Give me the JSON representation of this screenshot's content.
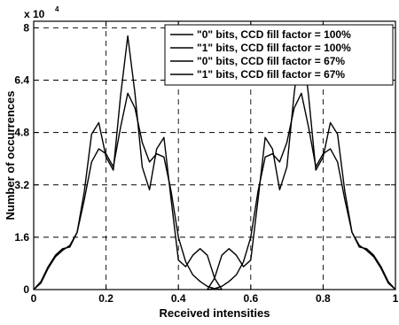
{
  "chart_data": {
    "type": "line",
    "xlabel": "Received intensities",
    "ylabel": "Number of occurrences",
    "xlim": [
      0,
      1
    ],
    "ylim": [
      0,
      82000
    ],
    "y_scale_base": "x 10",
    "y_scale_exponent": "4",
    "x_ticks": [
      0,
      0.2,
      0.4,
      0.6,
      0.8,
      1
    ],
    "x_tick_labels": [
      "0",
      "0.2",
      "0.4",
      "0.6",
      "0.8",
      "1"
    ],
    "y_ticks": [
      0,
      16000,
      32000,
      48000,
      64000,
      80000
    ],
    "y_tick_labels": [
      "0",
      "1.6",
      "3.2",
      "4.8",
      "6.4",
      "8"
    ],
    "grid": true,
    "grid_style": "dashed",
    "legend_position": "top-right",
    "series": [
      {
        "name": "\"0\" bits, CCD fill factor = 100%",
        "color": "#000000",
        "x": [
          0,
          0.02,
          0.04,
          0.06,
          0.08,
          0.1,
          0.12,
          0.14,
          0.16,
          0.18,
          0.2,
          0.22,
          0.24,
          0.26,
          0.28,
          0.3,
          0.32,
          0.34,
          0.36,
          0.38,
          0.4,
          0.42,
          0.44,
          0.46,
          0.48,
          0.5,
          0.52
        ],
        "y": [
          0,
          2500,
          7000,
          10500,
          12500,
          13000,
          17500,
          30000,
          47500,
          51000,
          40500,
          36500,
          59000,
          77500,
          60000,
          37500,
          30500,
          43000,
          46500,
          27500,
          9000,
          7000,
          10500,
          12500,
          10500,
          3500,
          0
        ]
      },
      {
        "name": "\"1\" bits, CCD fill factor = 100%",
        "color": "#000000",
        "x": [
          0.48,
          0.5,
          0.52,
          0.54,
          0.56,
          0.58,
          0.6,
          0.62,
          0.64,
          0.66,
          0.68,
          0.7,
          0.72,
          0.74,
          0.76,
          0.78,
          0.8,
          0.82,
          0.84,
          0.86,
          0.88,
          0.9,
          0.92,
          0.94,
          0.96,
          0.98,
          1
        ],
        "y": [
          0,
          3500,
          10500,
          12500,
          10500,
          7000,
          9000,
          27500,
          46500,
          43000,
          30500,
          37500,
          60000,
          77500,
          59000,
          36500,
          40500,
          51000,
          47500,
          30000,
          17500,
          13000,
          12500,
          10500,
          7000,
          2500,
          0
        ]
      },
      {
        "name": "\"0\" bits, CCD fill factor = 67%",
        "color": "#000000",
        "x": [
          0,
          0.02,
          0.04,
          0.06,
          0.08,
          0.1,
          0.12,
          0.14,
          0.16,
          0.18,
          0.2,
          0.22,
          0.24,
          0.26,
          0.28,
          0.3,
          0.32,
          0.34,
          0.36,
          0.38,
          0.4,
          0.42,
          0.44,
          0.46,
          0.48,
          0.5,
          0.52
        ],
        "y": [
          0,
          2000,
          6500,
          10000,
          12000,
          13500,
          17500,
          27500,
          39000,
          43000,
          41500,
          37500,
          49500,
          60000,
          55500,
          45000,
          39000,
          41500,
          40500,
          30000,
          16000,
          8500,
          4500,
          2500,
          1000,
          300,
          0
        ]
      },
      {
        "name": "\"1\" bits, CCD fill factor = 67%",
        "color": "#000000",
        "x": [
          0.48,
          0.5,
          0.52,
          0.54,
          0.56,
          0.58,
          0.6,
          0.62,
          0.64,
          0.66,
          0.68,
          0.7,
          0.72,
          0.74,
          0.76,
          0.78,
          0.8,
          0.82,
          0.84,
          0.86,
          0.88,
          0.9,
          0.92,
          0.94,
          0.96,
          0.98,
          1
        ],
        "y": [
          0,
          300,
          1000,
          2500,
          4500,
          8500,
          16000,
          30000,
          40500,
          41500,
          39000,
          45000,
          55500,
          60000,
          49500,
          37500,
          41500,
          43000,
          39000,
          27500,
          17500,
          13500,
          12000,
          10000,
          6500,
          2000,
          0
        ]
      }
    ]
  }
}
